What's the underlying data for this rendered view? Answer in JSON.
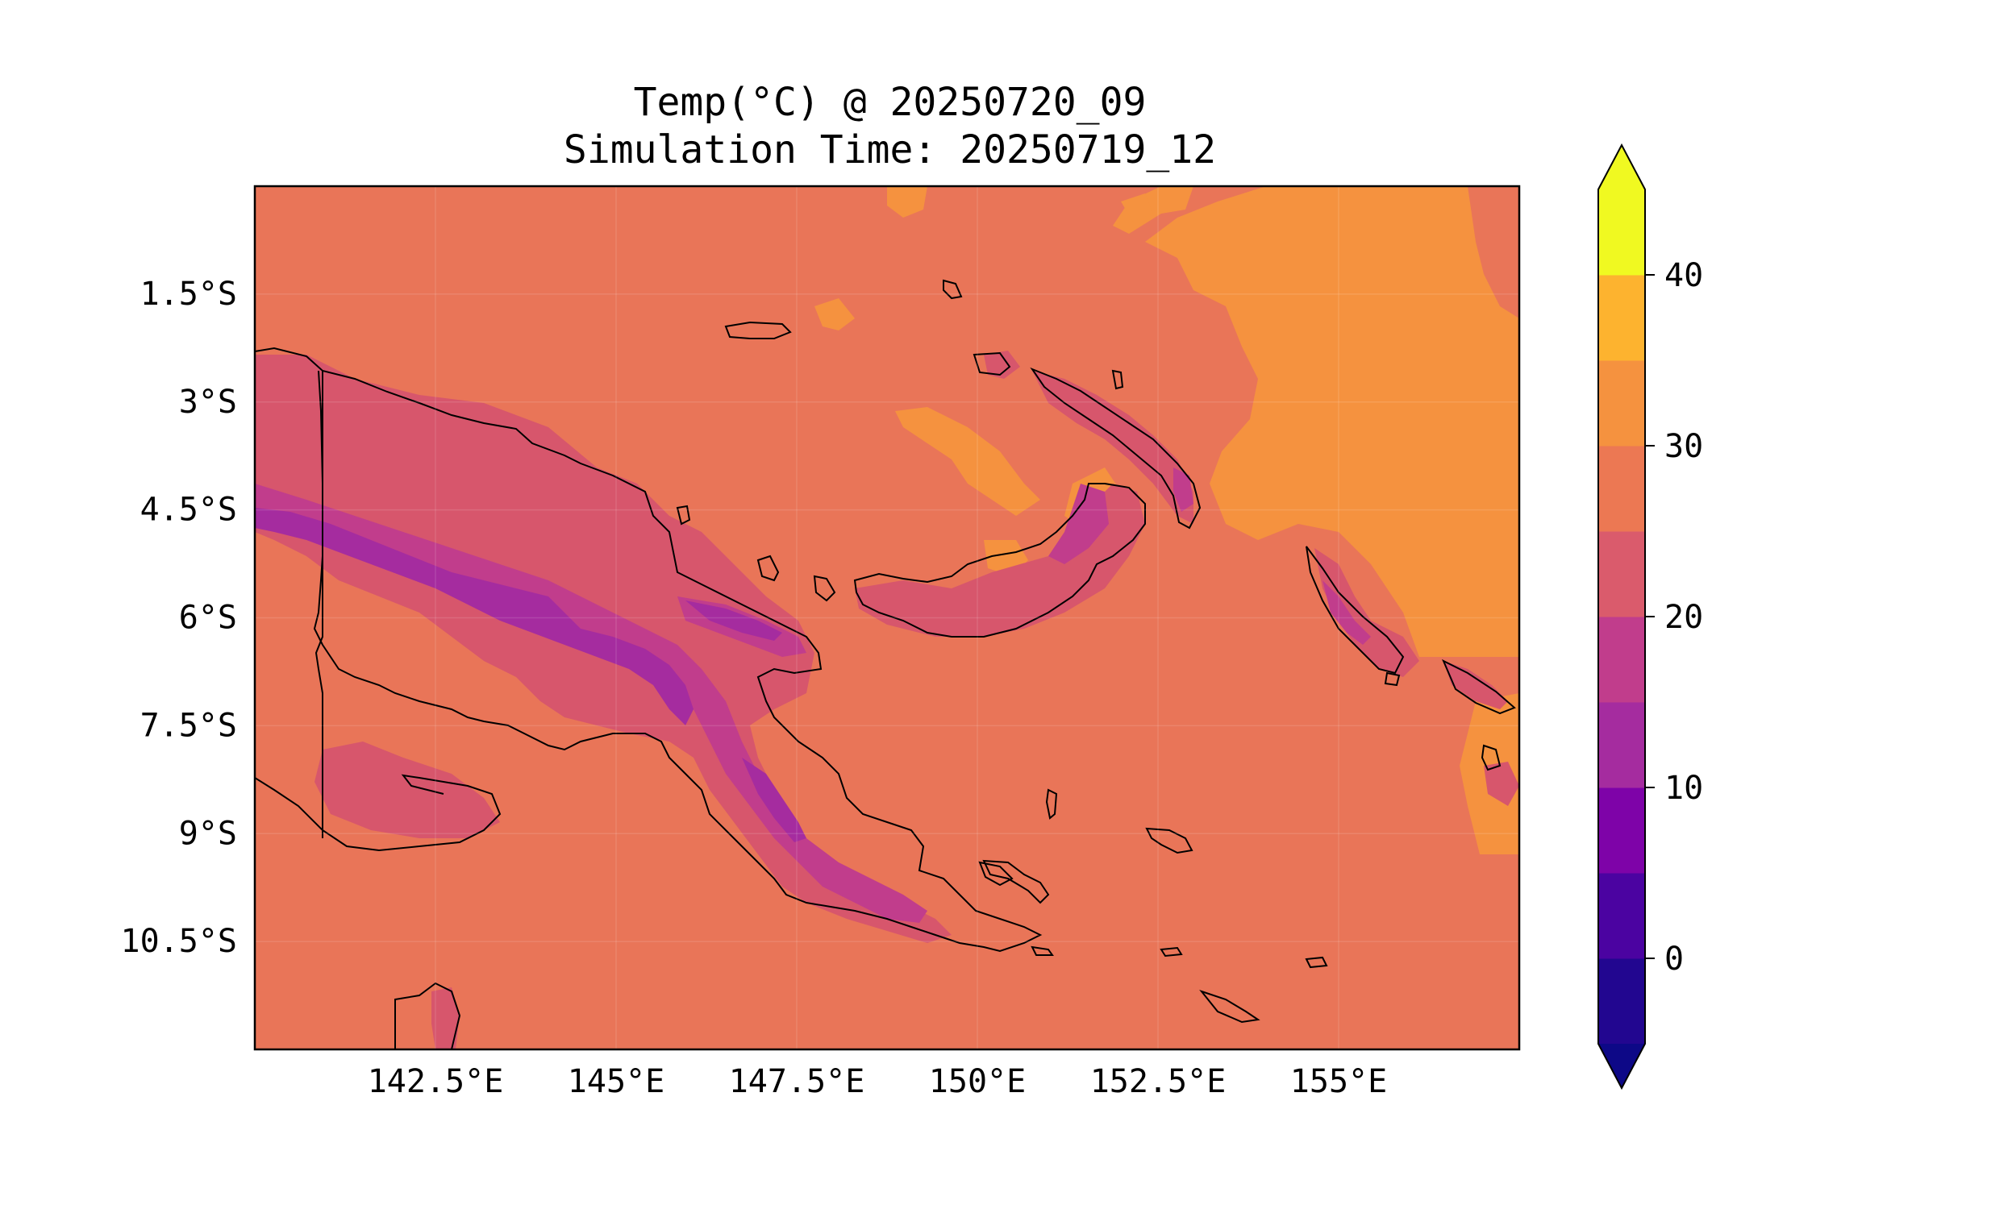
{
  "figure": {
    "title_line1": "Temp(°C) @ 20250720_09",
    "title_line2": "Simulation Time: 20250719_12"
  },
  "map": {
    "region": "Papua New Guinea",
    "lon_range": [
      140.0,
      157.5
    ],
    "lat_range": [
      -12.0,
      0.0
    ],
    "x_tick_labels": [
      "142.5°E",
      "145°E",
      "147.5°E",
      "150°E",
      "152.5°E",
      "155°E"
    ],
    "x_tick_values": [
      142.5,
      145,
      147.5,
      150,
      152.5,
      155
    ],
    "y_tick_labels": [
      "1.5°S",
      "3°S",
      "4.5°S",
      "6°S",
      "7.5°S",
      "9°S",
      "10.5°S"
    ],
    "y_tick_values": [
      -1.5,
      -3,
      -4.5,
      -6,
      -7.5,
      -9,
      -10.5
    ],
    "background_color": "#e97558",
    "warm_color": "#f5923f",
    "coastline_color": "#000000"
  },
  "colorbar": {
    "colormap": "plasma",
    "extend": "both",
    "levels": [
      -5,
      0,
      5,
      10,
      15,
      20,
      25,
      30,
      35,
      40,
      45
    ],
    "colors": [
      "#220690",
      "#4b03a1",
      "#7e03a8",
      "#a52c9f",
      "#c13d8c",
      "#da5b6c",
      "#ec7853",
      "#f5923f",
      "#fdb32f",
      "#f0f921"
    ],
    "under_color": "#0d0887",
    "over_color": "#f0f921",
    "tick_values": [
      0,
      10,
      20,
      30,
      40
    ],
    "tick_labels": [
      "0",
      "10",
      "20",
      "30",
      "40"
    ]
  }
}
